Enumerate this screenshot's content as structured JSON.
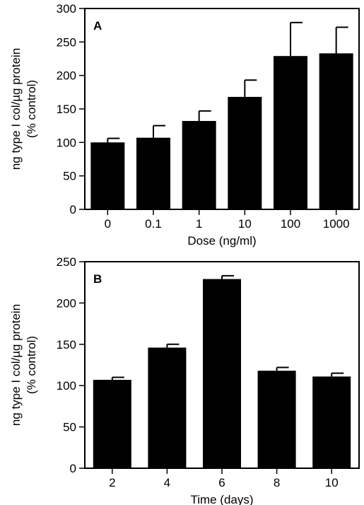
{
  "chart_data": [
    {
      "type": "bar",
      "panel_label": "A",
      "categories": [
        "0",
        "0.1",
        "1",
        "10",
        "100",
        "1000"
      ],
      "values": [
        100,
        107,
        132,
        168,
        229,
        233
      ],
      "errors": [
        6,
        18,
        15,
        25,
        50,
        39
      ],
      "xlabel": "Dose (ng/ml)",
      "ylabel": "ng type I col/µg protein",
      "ylabel2": "(% control)",
      "ylim": [
        0,
        300
      ],
      "yticks": [
        "0",
        "50",
        "100",
        "150",
        "200",
        "250",
        "300"
      ],
      "bar_color": "#000000"
    },
    {
      "type": "bar",
      "panel_label": "B",
      "categories": [
        "2",
        "4",
        "6",
        "8",
        "10"
      ],
      "values": [
        107,
        146,
        229,
        118,
        111
      ],
      "errors": [
        3,
        4,
        4,
        4,
        4
      ],
      "xlabel": "Time (days)",
      "ylabel": "ng type I col/µg protein",
      "ylabel2": "(% control)",
      "ylim": [
        0,
        250
      ],
      "yticks": [
        "0",
        "50",
        "100",
        "150",
        "200",
        "250"
      ],
      "bar_color": "#000000"
    }
  ]
}
